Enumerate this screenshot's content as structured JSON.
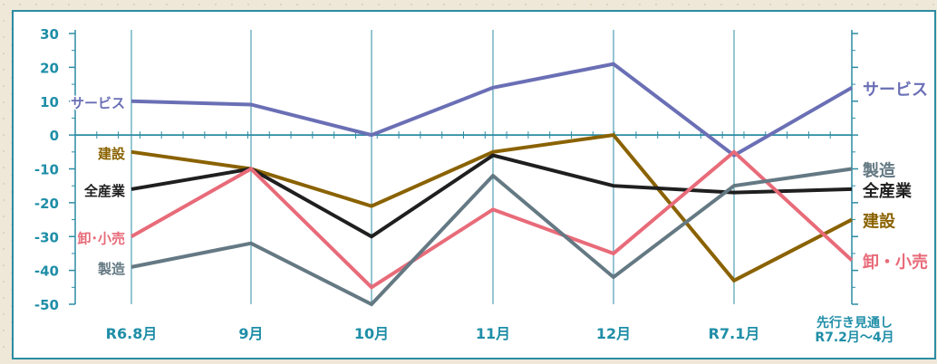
{
  "chart_data": {
    "type": "line",
    "categories": [
      "R6.8月",
      "9月",
      "10月",
      "11月",
      "12月",
      "R7.1月",
      "先行き見通し R7.2月〜4月"
    ],
    "category_lines": [
      [
        "R6.8月"
      ],
      [
        "9月"
      ],
      [
        "10月"
      ],
      [
        "11月"
      ],
      [
        "12月"
      ],
      [
        "R7.1月"
      ],
      [
        "先行き見通し",
        "R7.2月〜4月"
      ]
    ],
    "ylim": [
      -50,
      30
    ],
    "yticks": [
      "30",
      "20",
      "10",
      "0",
      "-10",
      "-20",
      "-30",
      "-40",
      "-50"
    ],
    "grid": true,
    "series": [
      {
        "name": "サービス",
        "left_label": "サービス",
        "right_label": "サービス",
        "color": "#6a6fb5",
        "values": [
          10,
          9,
          0,
          14,
          21,
          -6,
          14
        ]
      },
      {
        "name": "建設",
        "left_label": "建設",
        "right_label": "建設",
        "color": "#8a6200",
        "values": [
          -5,
          -10,
          -21,
          -5,
          0,
          -43,
          -25
        ]
      },
      {
        "name": "全産業",
        "left_label": "全産業",
        "right_label": "全産業",
        "color": "#1f1f1f",
        "values": [
          -16,
          -10,
          -30,
          -6,
          -15,
          -17,
          -16
        ]
      },
      {
        "name": "卸・小売",
        "left_label": "卸･小売",
        "right_label": "卸・小売",
        "color": "#e86b79",
        "values": [
          -30,
          -10,
          -45,
          -22,
          -35,
          -5,
          -37
        ]
      },
      {
        "name": "製造",
        "left_label": "製造",
        "right_label": "製造",
        "color": "#647983",
        "values": [
          -39,
          -32,
          -50,
          -12,
          -42,
          -15,
          -10
        ]
      }
    ]
  }
}
